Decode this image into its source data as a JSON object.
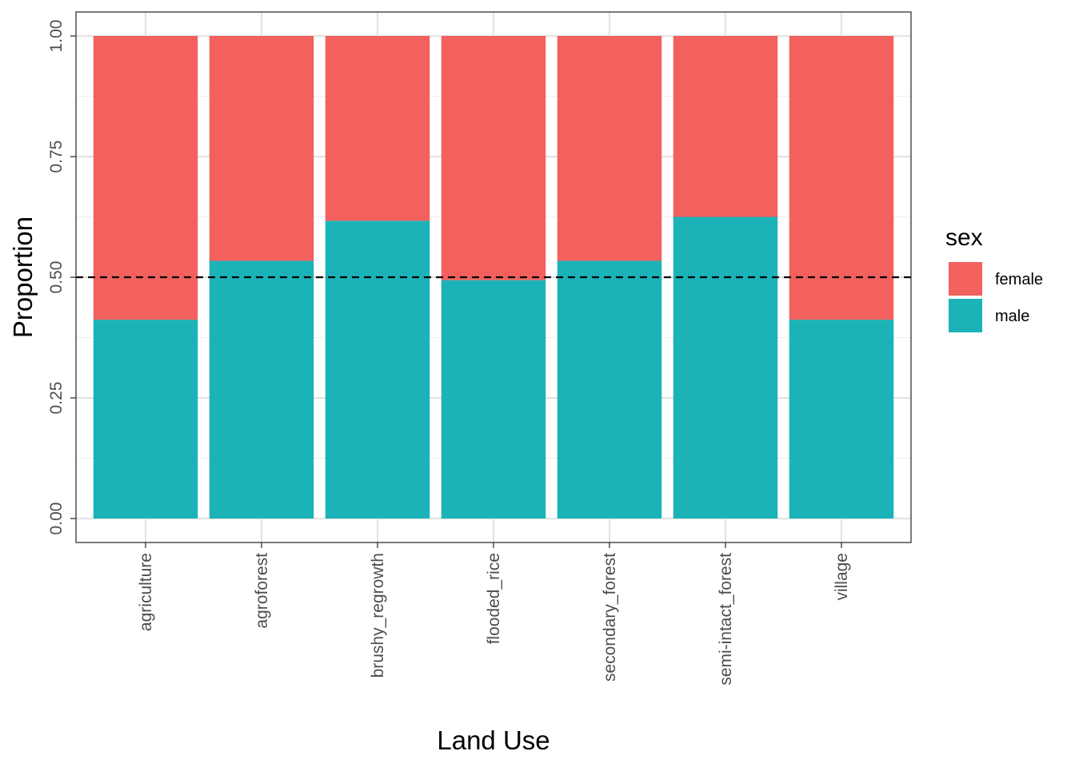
{
  "chart_data": {
    "type": "bar",
    "stacked": true,
    "categories": [
      "agriculture",
      "agroforest",
      "brushy_regrowth",
      "flooded_rice",
      "secondary_forest",
      "semi-intact_forest",
      "village"
    ],
    "series": [
      {
        "name": "male",
        "values": [
          0.412,
          0.534,
          0.617,
          0.494,
          0.534,
          0.625,
          0.412
        ],
        "color": "#1BB3B7"
      },
      {
        "name": "female",
        "values": [
          0.588,
          0.466,
          0.383,
          0.506,
          0.466,
          0.375,
          0.588
        ],
        "color": "#F2615E"
      }
    ],
    "xlabel": "Land Use",
    "ylabel": "Proportion",
    "ylim": [
      0,
      1
    ],
    "yticks": [
      "0.00",
      "0.25",
      "0.50",
      "0.75",
      "1.00"
    ],
    "reference_line": {
      "y": 0.5,
      "style": "dashed"
    },
    "legend": {
      "title": "sex",
      "position": "right",
      "entries": [
        "female",
        "male"
      ]
    },
    "grid": true
  }
}
